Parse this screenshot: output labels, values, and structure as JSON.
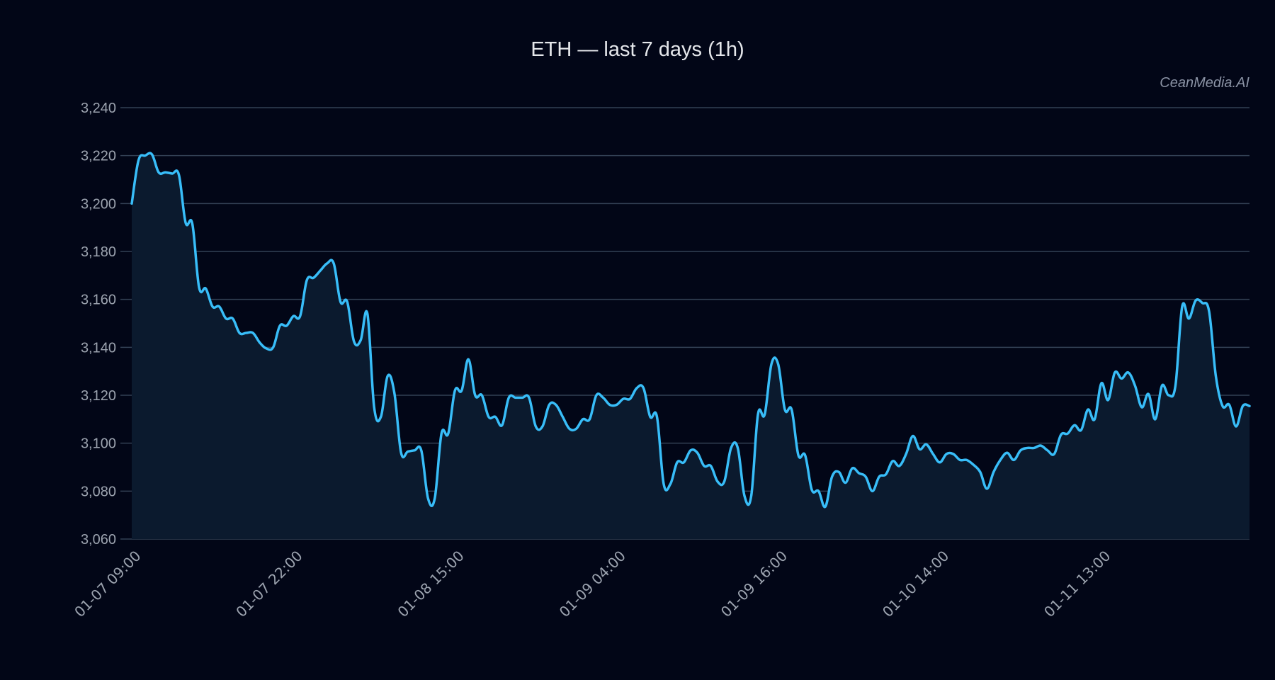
{
  "title": "ETH — last 7 days (1h)",
  "watermark": "CeanMedia.AI",
  "colors": {
    "background": "#020617",
    "line": "#38bdf8",
    "area": "#0b1a2e",
    "grid": "#334155",
    "tick_text": "#9ca3af"
  },
  "chart_data": {
    "type": "area",
    "title": "ETH — last 7 days (1h)",
    "xlabel": "",
    "ylabel": "",
    "ylim": [
      3060,
      3240
    ],
    "yticks": [
      3060,
      3080,
      3100,
      3120,
      3140,
      3160,
      3180,
      3200,
      3220,
      3240
    ],
    "ytick_labels": [
      "3,060",
      "3,080",
      "3,100",
      "3,120",
      "3,140",
      "3,160",
      "3,180",
      "3,200",
      "3,220",
      "3,240"
    ],
    "grid": true,
    "legend": null,
    "xtick_positions": [
      0,
      24,
      48,
      72,
      96,
      120,
      144
    ],
    "xtick_labels": [
      "01-07 09:00",
      "01-07 22:00",
      "01-08 15:00",
      "01-09 04:00",
      "01-09 16:00",
      "01-10 14:00",
      "01-11 13:00"
    ],
    "series": [
      {
        "name": "ETH",
        "values": [
          3200,
          3218,
          3220,
          3220.5,
          3213,
          3213,
          3212.5,
          3212,
          3192,
          3191.5,
          3165,
          3164.5,
          3157,
          3157,
          3152,
          3152,
          3146,
          3146,
          3146,
          3142,
          3139.5,
          3140,
          3149,
          3149,
          3153,
          3153,
          3168,
          3169,
          3172,
          3175,
          3175,
          3159,
          3159,
          3142.5,
          3143,
          3154,
          3115,
          3111,
          3128,
          3121,
          3096,
          3096.5,
          3097,
          3097,
          3077,
          3077,
          3104,
          3104,
          3122,
          3122,
          3135,
          3120,
          3120,
          3111,
          3111,
          3107.5,
          3119,
          3119,
          3119,
          3119,
          3107,
          3107,
          3116,
          3116,
          3111,
          3106,
          3106,
          3110,
          3110,
          3120,
          3119,
          3116,
          3116,
          3118.5,
          3118.5,
          3123,
          3123,
          3111,
          3111,
          3083,
          3083,
          3092,
          3092,
          3097,
          3096,
          3090.5,
          3090.5,
          3084,
          3084,
          3098,
          3098,
          3078,
          3078,
          3112,
          3112,
          3133,
          3133,
          3114,
          3114,
          3095,
          3095,
          3080.5,
          3080,
          3073.5,
          3086,
          3088,
          3083.5,
          3089.5,
          3087.5,
          3086,
          3080,
          3086,
          3087,
          3092.5,
          3090.5,
          3095.5,
          3103,
          3097.5,
          3099.5,
          3095.5,
          3092,
          3095.5,
          3095.5,
          3093,
          3093,
          3091,
          3088,
          3081,
          3088,
          3093,
          3096,
          3093,
          3097,
          3098,
          3098,
          3099,
          3097,
          3095.5,
          3103.5,
          3104,
          3107.5,
          3105.5,
          3114,
          3110,
          3125,
          3118,
          3129.5,
          3127,
          3129.5,
          3124,
          3115,
          3120.5,
          3110,
          3124,
          3120,
          3124,
          3157,
          3152,
          3159.5,
          3158.5,
          3155,
          3128,
          3115.5,
          3116,
          3107,
          3115.5,
          3115.5
        ]
      }
    ]
  }
}
